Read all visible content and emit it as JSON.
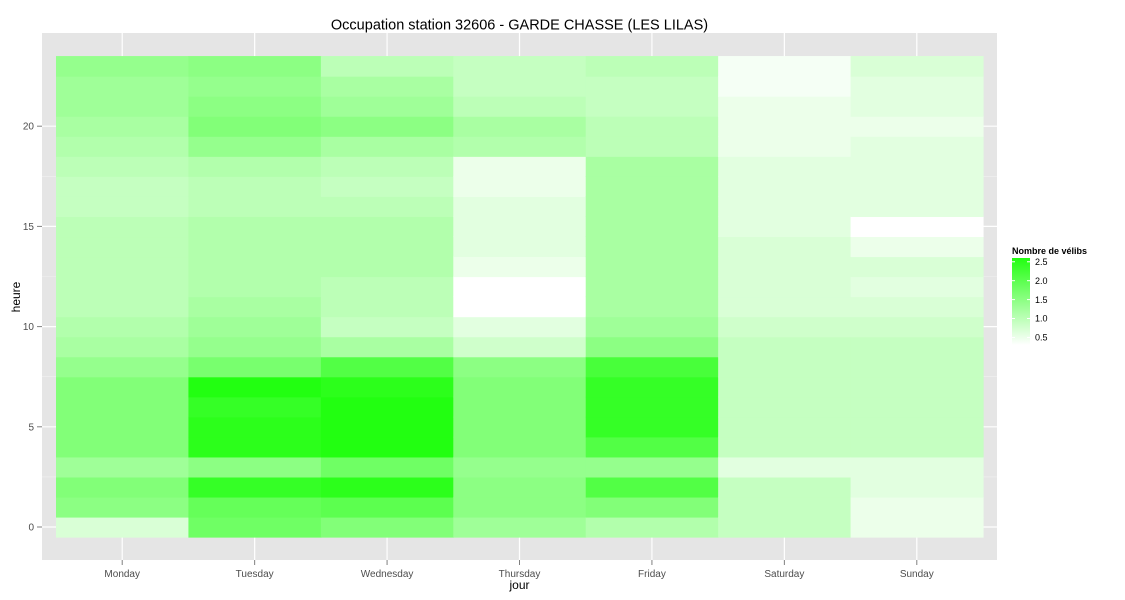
{
  "chart_data": {
    "type": "heatmap",
    "title": "Occupation station 32606 - GARDE CHASSE (LES LILAS)",
    "xlabel": "jour",
    "ylabel": "heure",
    "x_categories": [
      "Monday",
      "Tuesday",
      "Wednesday",
      "Thursday",
      "Friday",
      "Saturday",
      "Sunday"
    ],
    "y_ticks": [
      0,
      5,
      10,
      15,
      20
    ],
    "y_tick_labels": [
      "0",
      "5",
      "10",
      "15",
      "20"
    ],
    "ylim": [
      -1,
      24
    ],
    "hours": [
      0,
      1,
      2,
      3,
      4,
      5,
      6,
      7,
      8,
      9,
      10,
      11,
      12,
      13,
      14,
      15,
      16,
      17,
      18,
      19,
      20,
      21,
      22,
      23
    ],
    "grid": true,
    "legend": {
      "title": "Nombre de vélibs",
      "position": "right",
      "labels": [
        "2.5",
        "2.0",
        "1.5",
        "1.0",
        "0.5"
      ],
      "values": [
        2.5,
        2.0,
        1.5,
        1.0,
        0.5
      ],
      "range": [
        0.3,
        2.6
      ],
      "low_color": "#ffffff",
      "high_color": "#22ff11"
    },
    "values": [
      [
        0.7,
        1.5,
        1.6,
        1.3,
        1.6,
        1.6,
        1.6,
        1.6,
        1.4,
        1.2,
        1.1,
        1.0,
        1.0,
        1.0,
        1.0,
        1.0,
        0.9,
        0.9,
        1.0,
        1.1,
        1.2,
        1.3,
        1.3,
        1.4
      ],
      [
        1.8,
        1.9,
        2.4,
        1.5,
        2.5,
        2.5,
        2.4,
        2.6,
        1.7,
        1.4,
        1.3,
        1.2,
        1.1,
        1.1,
        1.1,
        1.1,
        1.0,
        1.0,
        1.1,
        1.4,
        1.6,
        1.5,
        1.4,
        1.5
      ],
      [
        1.6,
        2.0,
        2.5,
        1.8,
        2.6,
        2.6,
        2.6,
        2.5,
        2.1,
        1.2,
        0.9,
        1.0,
        1.0,
        1.1,
        1.1,
        1.1,
        1.0,
        0.9,
        1.0,
        1.2,
        1.5,
        1.3,
        1.2,
        1.0
      ],
      [
        1.3,
        1.5,
        1.5,
        1.4,
        1.6,
        1.6,
        1.6,
        1.6,
        1.5,
        0.8,
        0.6,
        0.3,
        0.3,
        0.5,
        0.6,
        0.6,
        0.6,
        0.5,
        0.5,
        1.1,
        1.2,
        1.0,
        0.9,
        0.9
      ],
      [
        1.1,
        1.6,
        2.1,
        1.4,
        2.1,
        2.4,
        2.4,
        2.4,
        2.2,
        1.5,
        1.3,
        1.2,
        1.2,
        1.2,
        1.2,
        1.2,
        1.2,
        1.2,
        1.2,
        1.0,
        1.0,
        0.9,
        0.9,
        1.0
      ],
      [
        0.9,
        0.9,
        0.9,
        0.6,
        0.9,
        0.9,
        0.9,
        0.9,
        0.9,
        0.9,
        0.8,
        0.7,
        0.7,
        0.7,
        0.7,
        0.6,
        0.6,
        0.6,
        0.6,
        0.5,
        0.5,
        0.5,
        0.4,
        0.4
      ],
      [
        0.5,
        0.5,
        0.6,
        0.6,
        0.9,
        0.9,
        0.9,
        0.9,
        0.9,
        0.9,
        0.8,
        0.7,
        0.6,
        0.7,
        0.5,
        0.3,
        0.6,
        0.6,
        0.6,
        0.6,
        0.5,
        0.6,
        0.6,
        0.7
      ]
    ]
  }
}
